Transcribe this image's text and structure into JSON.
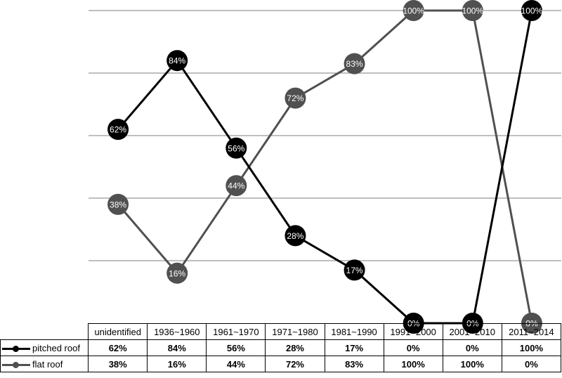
{
  "chart_data": {
    "type": "line",
    "categories": [
      "unidentified",
      "1936~1960",
      "1961~1970",
      "1971~1980",
      "1981~1990",
      "1991~2000",
      "2001~2010",
      "2011~2014"
    ],
    "ylim": [
      0,
      100
    ],
    "grid": true,
    "series": [
      {
        "name": "pitched roof",
        "color": "#000000",
        "values": [
          62,
          84,
          56,
          28,
          17,
          0,
          0,
          100
        ],
        "labels": [
          "62%",
          "84%",
          "56%",
          "28%",
          "17%",
          "0%",
          "0%",
          "100%"
        ]
      },
      {
        "name": "flat roof",
        "color": "#505050",
        "values": [
          38,
          16,
          44,
          72,
          83,
          100,
          100,
          0
        ],
        "labels": [
          "38%",
          "16%",
          "44%",
          "72%",
          "83%",
          "100%",
          "100%",
          "0%"
        ]
      }
    ]
  }
}
